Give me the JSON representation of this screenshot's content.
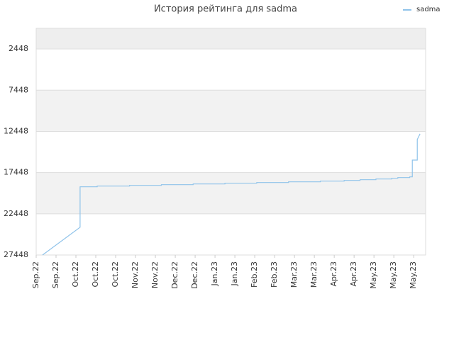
{
  "chart_data": {
    "type": "line",
    "title": "История рейтинга для sadma",
    "x": [
      0.32,
      2.21,
      2.21,
      3.07,
      3.07,
      4.7,
      4.7,
      6.3,
      6.3,
      7.9,
      7.9,
      9.5,
      9.5,
      11.1,
      11.1,
      12.7,
      12.7,
      14.3,
      14.3,
      15.5,
      15.5,
      16.3,
      16.3,
      17.1,
      17.1,
      17.9,
      17.9,
      18.2,
      18.2,
      18.8,
      18.8,
      18.93,
      18.93,
      19.18,
      19.18,
      19.32
    ],
    "series": [
      {
        "name": "sadma",
        "color": "#8fc3ea",
        "values": [
          27448,
          24086,
          19172,
          19172,
          19086,
          19086,
          19000,
          19000,
          18914,
          18914,
          18828,
          18828,
          18741,
          18741,
          18655,
          18655,
          18569,
          18569,
          18483,
          18483,
          18397,
          18397,
          18310,
          18310,
          18224,
          18224,
          18138,
          18138,
          18052,
          18052,
          17966,
          17966,
          15931,
          15931,
          13431,
          12741
        ]
      }
    ],
    "xlim": [
      0,
      19.6
    ],
    "xticks": [
      {
        "value": 0,
        "label": "Sep.22"
      },
      {
        "value": 1,
        "label": "Sep.22"
      },
      {
        "value": 2,
        "label": "Oct.22"
      },
      {
        "value": 3,
        "label": "Oct.22"
      },
      {
        "value": 4,
        "label": "Oct.22"
      },
      {
        "value": 5,
        "label": "Nov.22"
      },
      {
        "value": 6,
        "label": "Nov.22"
      },
      {
        "value": 7,
        "label": "Dec.22"
      },
      {
        "value": 8,
        "label": "Dec.22"
      },
      {
        "value": 9,
        "label": "Jan.23"
      },
      {
        "value": 10,
        "label": "Jan.23"
      },
      {
        "value": 11,
        "label": "Feb.23"
      },
      {
        "value": 12,
        "label": "Feb.23"
      },
      {
        "value": 13,
        "label": "Mar.23"
      },
      {
        "value": 14,
        "label": "Mar.23"
      },
      {
        "value": 15,
        "label": "Apr.23"
      },
      {
        "value": 16,
        "label": "Apr.23"
      },
      {
        "value": 17,
        "label": "May.23"
      },
      {
        "value": 18,
        "label": "May.23"
      },
      {
        "value": 19,
        "label": "May.23"
      }
    ],
    "ylim": [
      27448,
      -52
    ],
    "yticks": [
      2448,
      7448,
      12448,
      17448,
      22448,
      27448
    ],
    "grid": true,
    "legend": "top-right"
  }
}
